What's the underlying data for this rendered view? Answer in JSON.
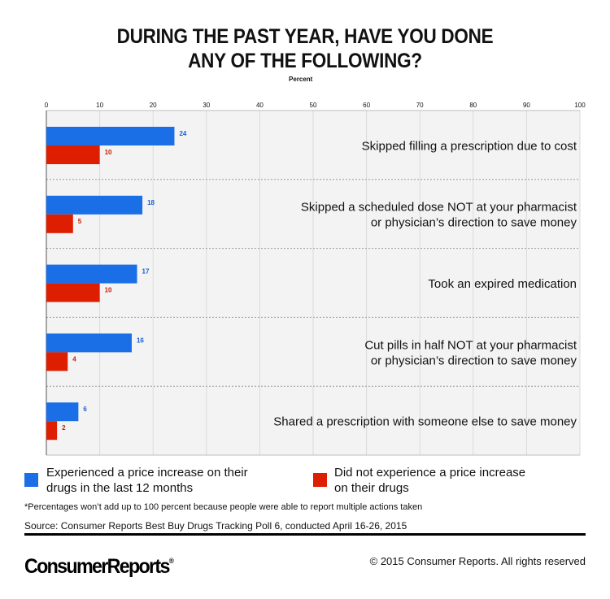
{
  "title_lines": [
    "DURING THE PAST YEAR, HAVE YOU DONE",
    "ANY OF THE FOLLOWING?"
  ],
  "chart_data": {
    "type": "bar",
    "orientation": "horizontal",
    "title": "DURING THE PAST YEAR, HAVE YOU DONE ANY OF THE FOLLOWING?",
    "xlabel": "Percent",
    "xlim": [
      0,
      100
    ],
    "ticks": [
      0,
      10,
      20,
      30,
      40,
      50,
      60,
      70,
      80,
      90,
      100
    ],
    "grid": true,
    "categories": [
      [
        "Skipped filling a prescription due to cost"
      ],
      [
        "Skipped a scheduled dose NOT at your pharmacist",
        "or physician’s direction to save money"
      ],
      [
        "Took an expired medication"
      ],
      [
        "Cut pills in half NOT at your pharmacist",
        "or physician’s direction to save money"
      ],
      [
        "Shared a prescription with someone else to save money"
      ]
    ],
    "series": [
      {
        "name": "Experienced a price increase on their drugs in the last 12 months",
        "color": "#1a6ee6",
        "label_color": "#1a5fd0",
        "values": [
          24,
          18,
          17,
          16,
          6
        ]
      },
      {
        "name": "Did not experience a price increase on their drugs",
        "color": "#dd1e00",
        "label_color": "#c81c00",
        "values": [
          10,
          5,
          10,
          4,
          2
        ]
      }
    ]
  },
  "legend": [
    {
      "lines": [
        "Experienced a price increase on their",
        "drugs in the last 12 months"
      ],
      "color": "#1a6ee6"
    },
    {
      "lines": [
        "Did not experience a price increase",
        "on their drugs"
      ],
      "color": "#dd1e00"
    }
  ],
  "footnote": "*Percentages won’t add up to 100 percent because people were able to report multiple actions taken",
  "source": "Source: Consumer Reports Best Buy Drugs Tracking Poll 6, conducted April 16-26, 2015",
  "logo": {
    "text": "ConsumerReports",
    "mark": "®"
  },
  "copyright": "© 2015 Consumer Reports. All rights reserved"
}
